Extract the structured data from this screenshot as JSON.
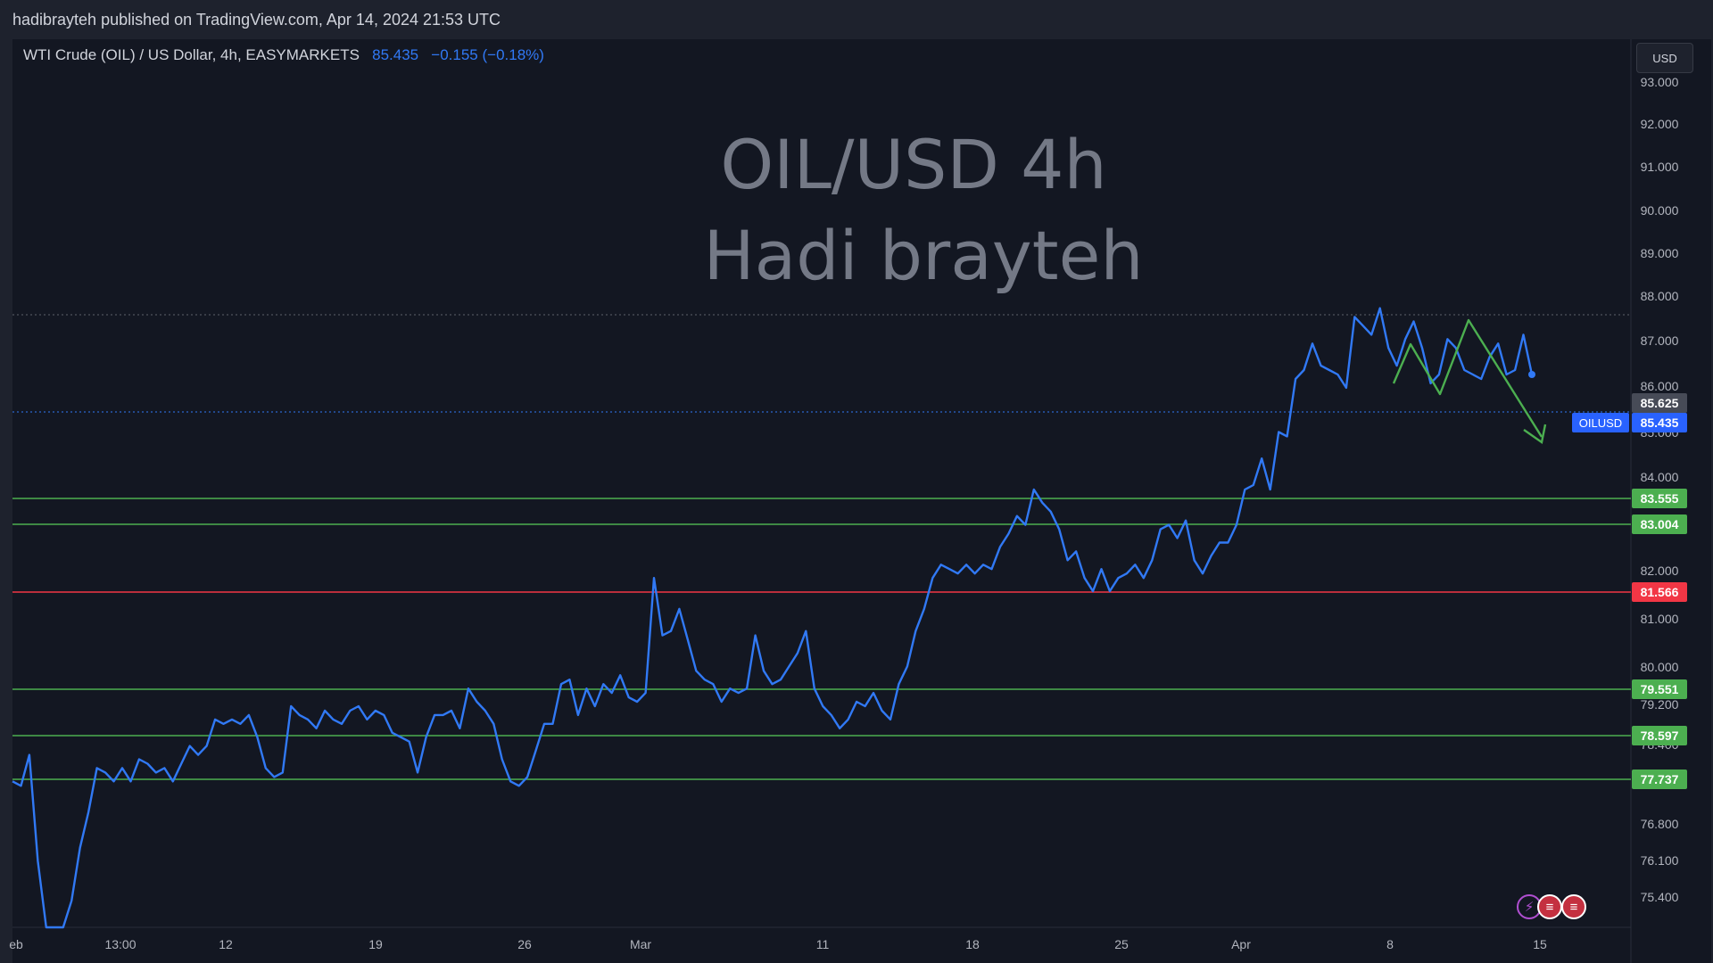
{
  "header": {
    "published_text": "hadibrayteh published on TradingView.com, Apr 14, 2024 21:53 UTC"
  },
  "legend": {
    "symbol": "WTI Crude (OIL) / US Dollar, 4h, EASYMARKETS",
    "price": "85.435",
    "change": "−0.155 (−0.18%)"
  },
  "currency_button": "USD",
  "watermark": {
    "line1": "OIL/USD 4h",
    "line2": "Hadi brayteh"
  },
  "colors": {
    "price_line": "#3179f5",
    "support_line": "#4caf50",
    "resistance_line": "#f23645",
    "background": "#131722"
  },
  "chart_data": {
    "type": "line",
    "series": [
      {
        "name": "OILUSD",
        "values": [
          76.3,
          76.2,
          76.9,
          74.5,
          73.0,
          72.5,
          72.6,
          73.6,
          74.8,
          75.6,
          76.6,
          76.5,
          76.3,
          76.6,
          76.3,
          76.8,
          76.7,
          76.5,
          76.6,
          76.3,
          76.7,
          77.1,
          76.9,
          77.1,
          77.7,
          77.6,
          77.7,
          77.6,
          77.8,
          77.3,
          76.6,
          76.4,
          76.5,
          78.0,
          77.8,
          77.7,
          77.5,
          77.9,
          77.7,
          77.6,
          77.9,
          78.0,
          77.7,
          77.9,
          77.8,
          77.4,
          77.3,
          77.2,
          76.5,
          77.3,
          77.8,
          77.8,
          77.9,
          77.5,
          78.4,
          78.1,
          77.9,
          77.6,
          76.8,
          76.3,
          76.2,
          76.4,
          77.0,
          77.6,
          77.6,
          78.5,
          78.6,
          77.8,
          78.4,
          78.0,
          78.5,
          78.3,
          78.7,
          78.2,
          78.1,
          78.3,
          80.9,
          79.6,
          79.7,
          80.2,
          79.5,
          78.8,
          78.6,
          78.5,
          78.1,
          78.4,
          78.3,
          78.4,
          79.6,
          78.8,
          78.5,
          78.6,
          78.9,
          79.2,
          79.7,
          78.4,
          78.0,
          77.8,
          77.5,
          77.7,
          78.1,
          78.0,
          78.3,
          77.9,
          77.7,
          78.5,
          78.9,
          79.7,
          80.2,
          80.9,
          81.2,
          81.1,
          81.0,
          81.2,
          81.0,
          81.2,
          81.1,
          81.6,
          81.9,
          82.3,
          82.1,
          82.9,
          82.6,
          82.4,
          82.0,
          81.3,
          81.5,
          80.9,
          80.6,
          81.1,
          80.6,
          80.9,
          81.0,
          81.2,
          80.9,
          81.3,
          82.0,
          82.1,
          81.8,
          82.2,
          81.3,
          81.0,
          81.4,
          81.7,
          81.7,
          82.1,
          82.9,
          83.0,
          83.6,
          82.9,
          84.2,
          84.1,
          85.4,
          85.6,
          86.2,
          85.7,
          85.6,
          85.5,
          85.2,
          86.8,
          86.6,
          86.4,
          87.0,
          86.1,
          85.7,
          86.3,
          86.7,
          86.1,
          85.3,
          85.5,
          86.3,
          86.1,
          85.6,
          85.5,
          85.4,
          85.9,
          86.2,
          85.5,
          85.6,
          86.4,
          85.5
        ],
        "x_start": "Feb 1 2024 (4h bars)"
      }
    ],
    "x_tick_labels": [
      "eb",
      "13:00",
      "12",
      "19",
      "26",
      "Mar",
      "11",
      "18",
      "25",
      "Apr",
      "8",
      "15"
    ],
    "y_tick_labels": [
      "75.400",
      "76.100",
      "76.800",
      "78.400",
      "79.200",
      "80.000",
      "81.000",
      "82.000",
      "84.000",
      "85.000",
      "86.000",
      "87.000",
      "88.000",
      "89.000",
      "90.000",
      "91.000",
      "92.000",
      "93.000"
    ],
    "horizontal_levels": [
      {
        "value": 83.555,
        "label": "83.555",
        "color": "#4caf50"
      },
      {
        "value": 83.004,
        "label": "83.004",
        "color": "#4caf50"
      },
      {
        "value": 81.566,
        "label": "81.566",
        "color": "#f23645"
      },
      {
        "value": 79.551,
        "label": "79.551",
        "color": "#4caf50"
      },
      {
        "value": 78.597,
        "label": "78.597",
        "color": "#4caf50"
      },
      {
        "value": 77.737,
        "label": "77.737",
        "color": "#4caf50"
      }
    ],
    "price_labels": [
      {
        "value": 85.625,
        "label": "85.625"
      },
      {
        "value": 85.435,
        "label": "85.435",
        "symbol": "OILUSD"
      }
    ],
    "dotted_levels": [
      87.6,
      85.435
    ]
  }
}
